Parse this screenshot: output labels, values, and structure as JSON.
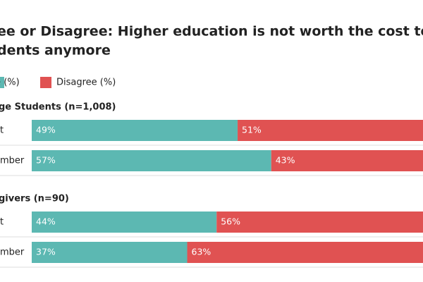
{
  "chart_data": {
    "type": "bar",
    "stacked": true,
    "orientation": "horizontal",
    "title": [
      "ee or Disagree: Higher education is not worth the cost to",
      "dents anymore"
    ],
    "xlim": [
      0,
      100
    ],
    "groups": [
      {
        "label": "ge Students (n=1,008)",
        "categories": [
          "t",
          "mber"
        ],
        "series": [
          {
            "name": "ree (%)",
            "color": "#5cb8b2",
            "values": [
              49,
              57
            ],
            "value_labels": [
              "49%",
              "57%"
            ]
          },
          {
            "name": "Disagree (%)",
            "color": "#e05252",
            "values": [
              51,
              43
            ],
            "value_labels": [
              "51%",
              "43%"
            ]
          }
        ]
      },
      {
        "label": "givers (n=90)",
        "categories": [
          "t",
          "mber"
        ],
        "series": [
          {
            "name": "ree (%)",
            "color": "#5cb8b2",
            "values": [
              44,
              37
            ],
            "value_labels": [
              "44%",
              "37%"
            ]
          },
          {
            "name": "Disagree (%)",
            "color": "#e05252",
            "values": [
              56,
              63
            ],
            "value_labels": [
              "56%",
              "63%"
            ]
          }
        ]
      }
    ]
  }
}
